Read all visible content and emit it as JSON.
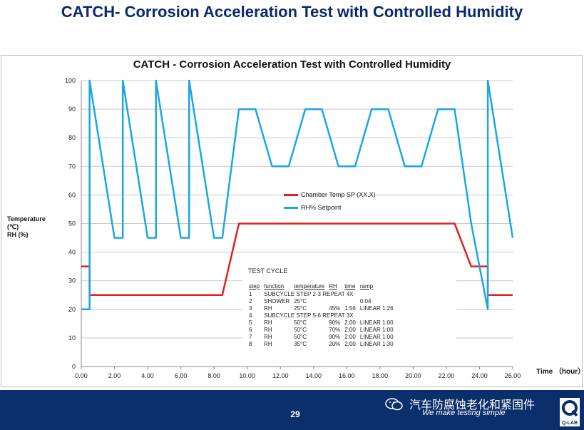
{
  "slide": {
    "title": "CATCH- Corrosion Acceleration Test with Controlled Humidity",
    "page_number": "29"
  },
  "footer": {
    "brand_text": "汽车防腐蚀老化和紧固件",
    "tagline": "We make testing simple",
    "logo_text": "Q-LAB"
  },
  "chart_data": {
    "type": "line",
    "title": "CATCH - Corrosion Acceleration Test with Controlled Humidity",
    "ylabel": "Temperature (℃)\nRH (%)",
    "xlabel": "Time （hour）",
    "xlim": [
      0,
      26
    ],
    "ylim": [
      0,
      100
    ],
    "xticks": [
      "0.00",
      "2.00",
      "4.00",
      "6.00",
      "8.00",
      "10.00",
      "12.00",
      "14.00",
      "16.00",
      "18.00",
      "20.00",
      "22.00",
      "24.00",
      "26.00"
    ],
    "yticks": [
      "0",
      "10",
      "20",
      "30",
      "40",
      "50",
      "60",
      "70",
      "80",
      "90",
      "100"
    ],
    "grid": "horizontal",
    "legend_position": "center",
    "series": [
      {
        "name": "Chamber Temp SP (XX.X)",
        "color": "#e02020",
        "x": [
          0,
          0.5,
          0.5,
          8.5,
          9.5,
          22.5,
          23.5,
          24.5,
          24.5,
          26
        ],
        "y": [
          35,
          35,
          25,
          25,
          50,
          50,
          35,
          35,
          25,
          25
        ]
      },
      {
        "name": "RH% Setpoint",
        "color": "#1aa7e0",
        "x": [
          0,
          0,
          0.5,
          0.5,
          2,
          2.5,
          2.5,
          4,
          4.5,
          4.5,
          6,
          6.5,
          6.5,
          8,
          8.5,
          9.5,
          10.5,
          11.5,
          12.5,
          13.5,
          14.5,
          15.5,
          16.5,
          17.5,
          18.5,
          19.5,
          20.5,
          21.5,
          22.5,
          23.5,
          24.5,
          24.5,
          26
        ],
        "y": [
          20,
          20,
          20,
          100,
          45,
          45,
          100,
          45,
          45,
          100,
          45,
          45,
          100,
          45,
          45,
          90,
          90,
          70,
          70,
          90,
          90,
          70,
          70,
          90,
          90,
          70,
          70,
          90,
          90,
          50,
          20,
          100,
          45
        ]
      }
    ],
    "annotation": {
      "title": "TEST CYCLE",
      "headers": [
        "step",
        "function",
        "temperature",
        "RH",
        "time",
        "ramp"
      ],
      "rows": [
        [
          "1",
          "SUBCYCLE  STEP  2-3  REPEAT  4X",
          "",
          "",
          "",
          ""
        ],
        [
          "2",
          "SHOWER",
          "25°C",
          "",
          "",
          "0:04"
        ],
        [
          "3",
          "RH",
          "25°C",
          "45%",
          "1:56",
          "LINEAR 1:26"
        ],
        [
          "4",
          "SUBCYCLE  STEP  5-6  REPEAT  3X",
          "",
          "",
          "",
          ""
        ],
        [
          "5",
          "RH",
          "50°C",
          "90%",
          "2:00",
          "LINEAR 1:00"
        ],
        [
          "6",
          "RH",
          "50°C",
          "70%",
          "2:00",
          "LINEAR 1:00"
        ],
        [
          "7",
          "RH",
          "50°C",
          "90%",
          "2:00",
          "LINEAR 1:00"
        ],
        [
          "8",
          "RH",
          "35°C",
          "20%",
          "2:00",
          "LINEAR 1:30"
        ]
      ]
    }
  }
}
